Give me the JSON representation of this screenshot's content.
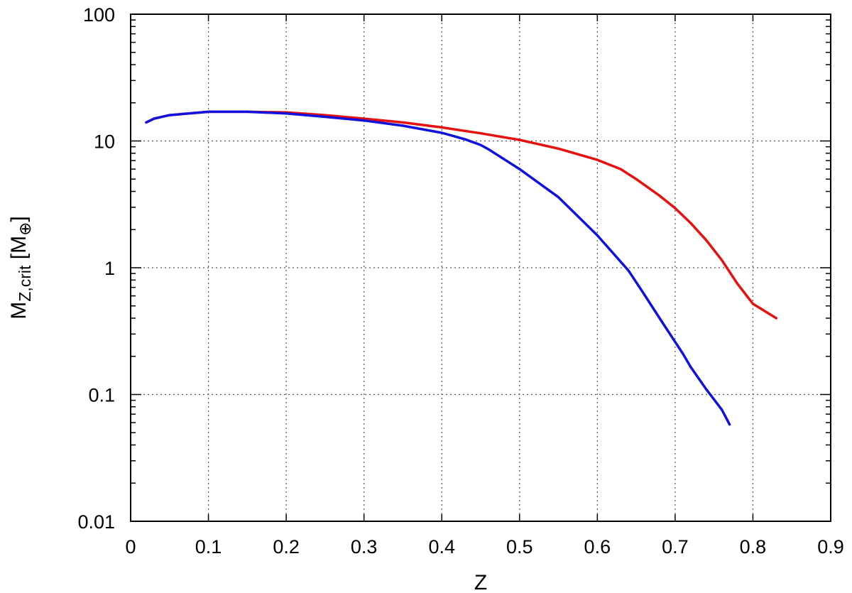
{
  "chart_data": {
    "type": "line",
    "title": "",
    "xlabel": "Z",
    "ylabel": {
      "main": "M",
      "subscript": "Z,crit",
      "unit_open": " [M",
      "unit_subscript": "⊕",
      "unit_close": "]"
    },
    "xlim": [
      0,
      0.9
    ],
    "ylim": [
      0.01,
      100
    ],
    "yscale": "log",
    "grid": true,
    "legend": "none",
    "x_ticks": [
      0,
      0.1,
      0.2,
      0.3,
      0.4,
      0.5,
      0.6,
      0.7,
      0.8,
      0.9
    ],
    "x_tick_labels": [
      "0",
      "0.1",
      "0.2",
      "0.3",
      "0.4",
      "0.5",
      "0.6",
      "0.7",
      "0.8",
      "0.9"
    ],
    "y_ticks": [
      0.01,
      0.1,
      1,
      10,
      100
    ],
    "y_tick_labels": [
      "0.01",
      "0.1",
      "1",
      "10",
      "100"
    ],
    "series": [
      {
        "color": "#e8100f",
        "x": [
          0.02,
          0.03,
          0.05,
          0.1,
          0.15,
          0.2,
          0.25,
          0.3,
          0.35,
          0.4,
          0.45,
          0.5,
          0.55,
          0.6,
          0.63,
          0.65,
          0.68,
          0.7,
          0.72,
          0.74,
          0.76,
          0.78,
          0.8,
          0.83
        ],
        "y": [
          14,
          15,
          16,
          17,
          17,
          16.8,
          16,
          15,
          14,
          12.8,
          11.5,
          10.2,
          8.7,
          7.1,
          6.0,
          5.0,
          3.7,
          2.95,
          2.25,
          1.65,
          1.15,
          0.75,
          0.52,
          0.4
        ]
      },
      {
        "color": "#0f12dd",
        "x": [
          0.02,
          0.03,
          0.05,
          0.1,
          0.15,
          0.2,
          0.25,
          0.3,
          0.35,
          0.4,
          0.43,
          0.45,
          0.46,
          0.5,
          0.55,
          0.6,
          0.64,
          0.66,
          0.68,
          0.7,
          0.71,
          0.72,
          0.74,
          0.76,
          0.77
        ],
        "y": [
          14,
          15,
          16,
          17,
          17,
          16.5,
          15.5,
          14.5,
          13.2,
          11.6,
          10.3,
          9.3,
          8.6,
          6.0,
          3.6,
          1.8,
          0.95,
          0.62,
          0.4,
          0.26,
          0.21,
          0.165,
          0.11,
          0.076,
          0.058
        ]
      }
    ]
  }
}
